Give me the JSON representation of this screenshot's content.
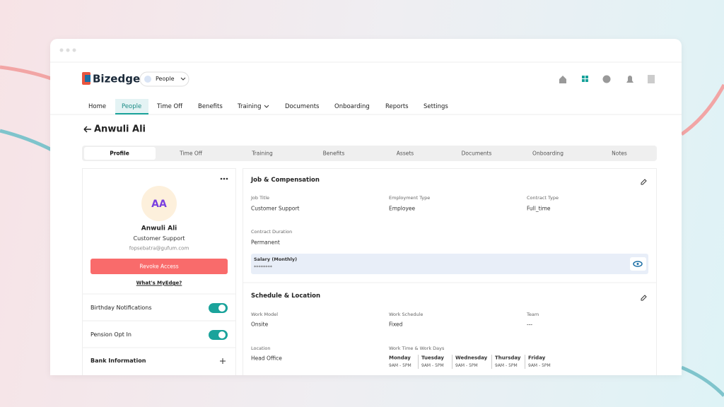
{
  "app": {
    "logo": "Bizedge",
    "module": "People"
  },
  "nav": [
    "Home",
    "People",
    "Time Off",
    "Benefits",
    "Training",
    "Documents",
    "Onboarding",
    "Reports",
    "Settings"
  ],
  "page_title": "Anwuli Ali",
  "tabs": [
    "Profile",
    "Time Off",
    "Training",
    "Benefits",
    "Assets",
    "Documents",
    "Onboarding",
    "Notes"
  ],
  "profile": {
    "initials": "AA",
    "name": "Anwuli Ali",
    "role": "Customer Support",
    "email": "fopsebatra@gufum.com",
    "revoke": "Revoke Access",
    "myedge": "What's MyEdge?"
  },
  "settings": [
    {
      "label": "Birthday Notifications",
      "on": true
    },
    {
      "label": "Pension Opt In",
      "on": true
    }
  ],
  "bank": "Bank Information",
  "job": {
    "title": "Job & Compensation",
    "fields": [
      {
        "label": "Job Title",
        "value": "Customer Support"
      },
      {
        "label": "Employment Type",
        "value": "Employee"
      },
      {
        "label": "Contract Type",
        "value": "Full_time"
      },
      {
        "label": "Contract Duration",
        "value": "Permanent"
      }
    ],
    "salary": {
      "label": "Salary (Monthly)",
      "value": "********"
    }
  },
  "schedule": {
    "title": "Schedule & Location",
    "fields": [
      {
        "label": "Work Model",
        "value": "Onsite"
      },
      {
        "label": "Work Schedule",
        "value": "Fixed"
      },
      {
        "label": "Team",
        "value": "---"
      },
      {
        "label": "Location",
        "value": "Head Office"
      }
    ],
    "work_time_label": "Work Time & Work Days",
    "days": [
      {
        "day": "Monday",
        "time": "9AM - 5PM"
      },
      {
        "day": "Tuesday",
        "time": "9AM - 5PM"
      },
      {
        "day": "Wednesday",
        "time": "9AM - 5PM"
      },
      {
        "day": "Thursday",
        "time": "9AM - 5PM"
      },
      {
        "day": "Friday",
        "time": "9AM - 5PM"
      }
    ]
  }
}
